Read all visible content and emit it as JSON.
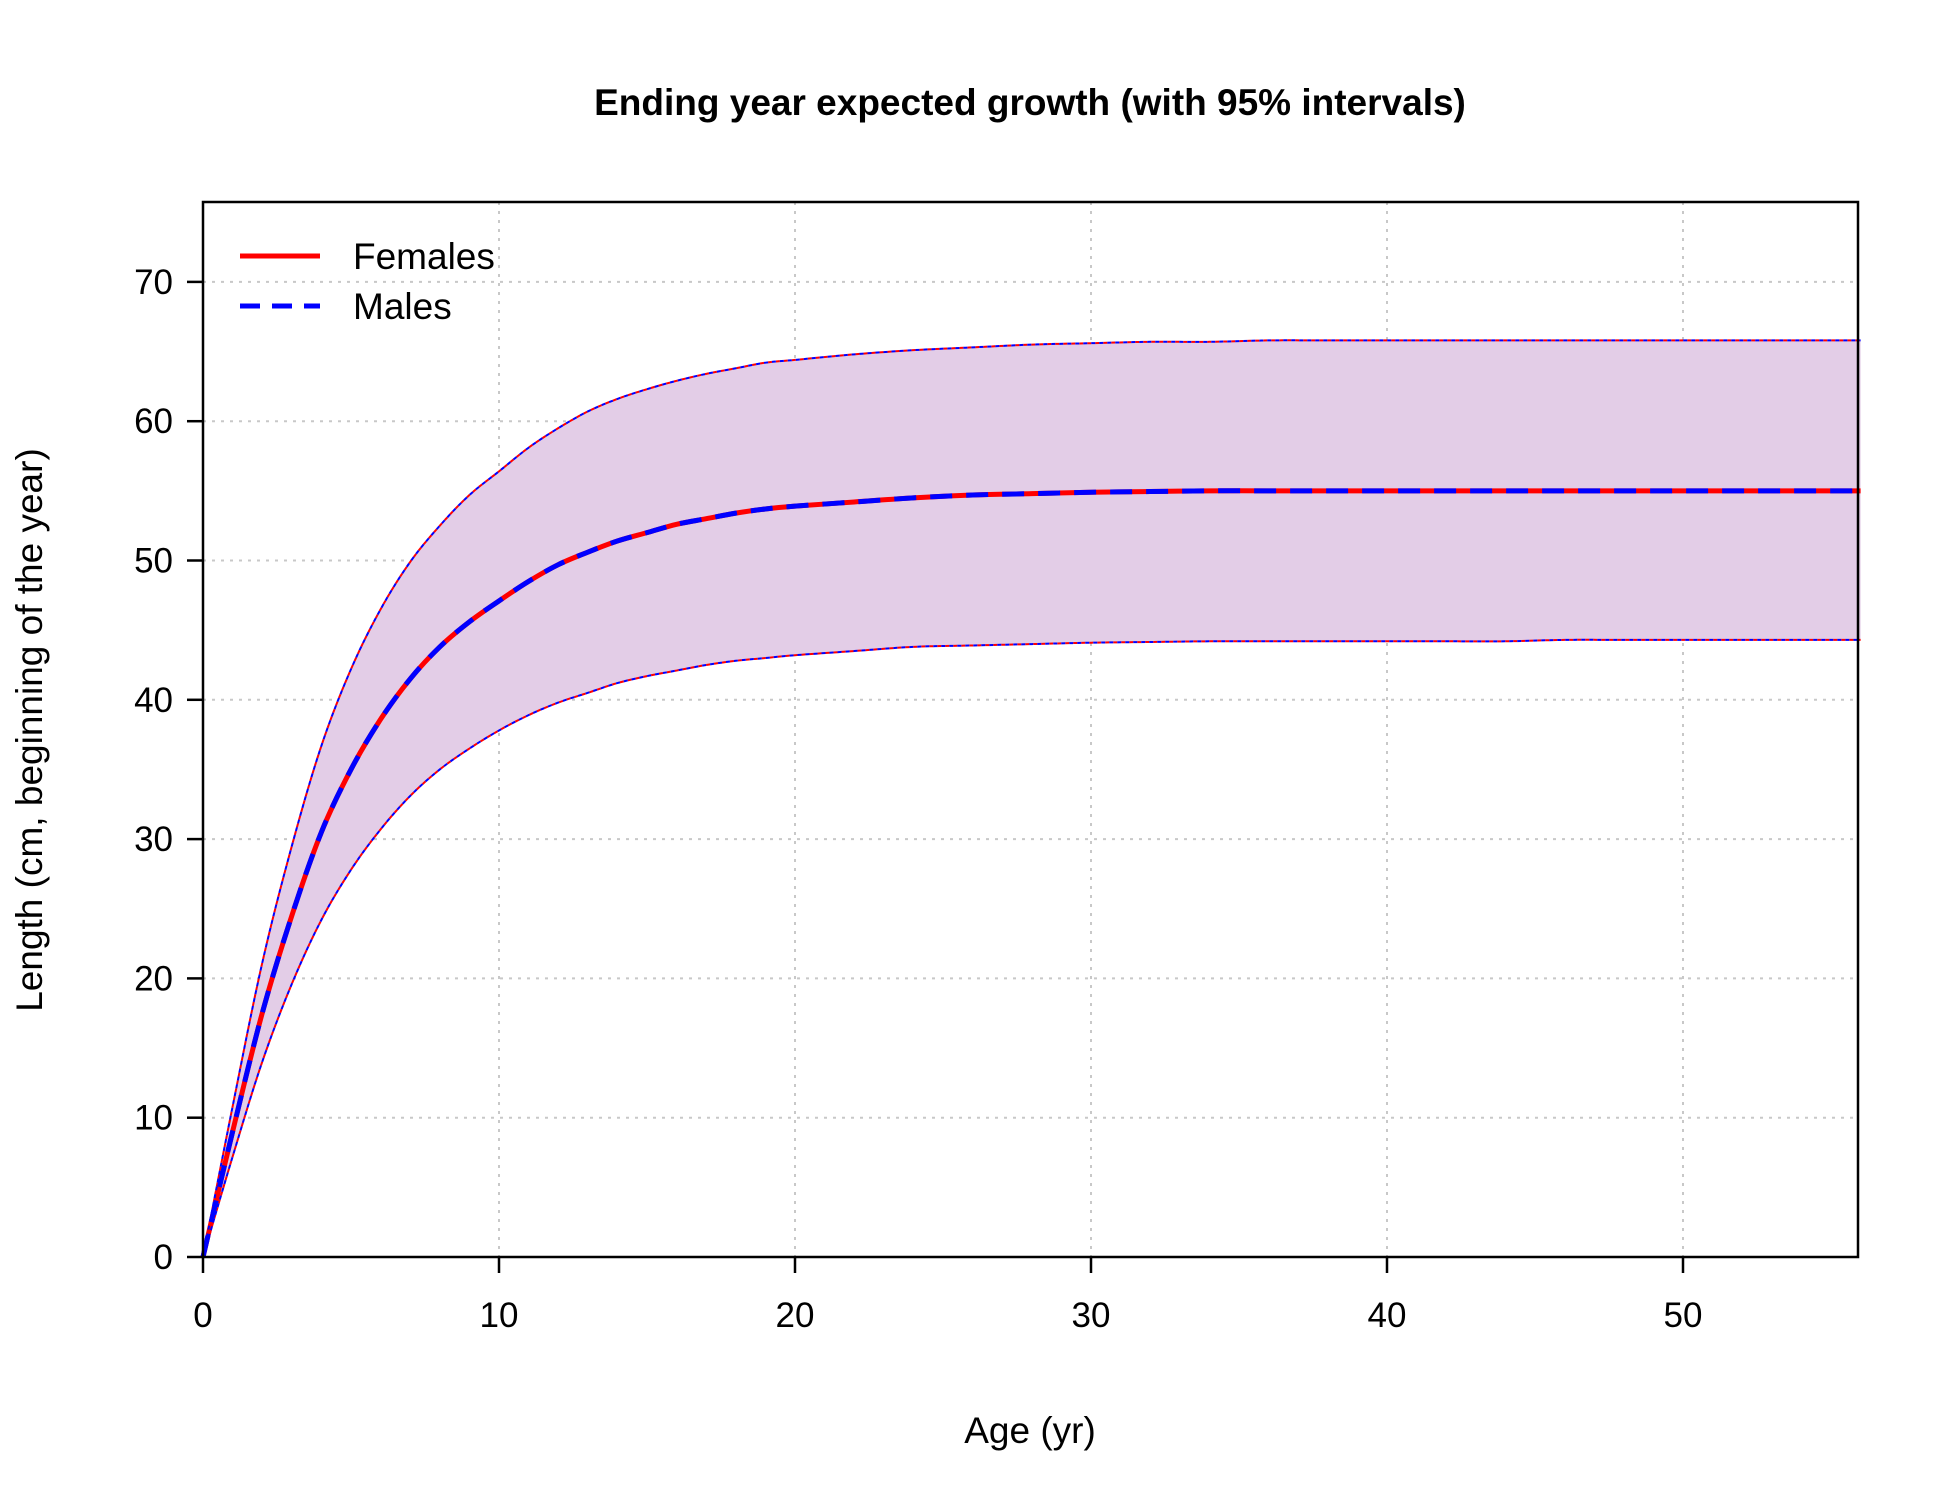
{
  "chart_data": {
    "type": "line",
    "title": "Ending year expected growth (with 95% intervals)",
    "xlabel": "Age (yr)",
    "ylabel": "Length (cm, beginning of the year)",
    "xlim": [
      0,
      56
    ],
    "ylim": [
      0,
      75
    ],
    "x_ticks": [
      0,
      10,
      20,
      30,
      40,
      50
    ],
    "y_ticks": [
      0,
      10,
      20,
      30,
      40,
      50,
      60,
      70
    ],
    "grid": true,
    "legend_position": "top-left",
    "interval_fill_color": "#e3cde7",
    "x": [
      0,
      1,
      2,
      3,
      4,
      5,
      6,
      7,
      8,
      9,
      10,
      11,
      12,
      13,
      14,
      15,
      16,
      17,
      18,
      19,
      20,
      22,
      24,
      26,
      28,
      30,
      32,
      34,
      36,
      38,
      40,
      42,
      44,
      46,
      48,
      50,
      52,
      54,
      56
    ],
    "series": [
      {
        "name": "Females",
        "color": "#ff0000",
        "line_style": "solid",
        "values": [
          0.0,
          9.0,
          17.5,
          24.5,
          30.5,
          35.0,
          38.6,
          41.5,
          43.8,
          45.6,
          47.1,
          48.5,
          49.7,
          50.6,
          51.4,
          52.0,
          52.6,
          53.0,
          53.4,
          53.7,
          53.9,
          54.2,
          54.5,
          54.7,
          54.8,
          54.9,
          54.95,
          55.0,
          55.0,
          55.0,
          55.0,
          55.0,
          55.0,
          55.0,
          55.0,
          55.0,
          55.0,
          55.0,
          55.0
        ],
        "lower": [
          0.0,
          7.2,
          14.0,
          19.6,
          24.2,
          27.8,
          30.7,
          33.1,
          35.0,
          36.5,
          37.8,
          38.9,
          39.8,
          40.5,
          41.2,
          41.7,
          42.1,
          42.5,
          42.8,
          43.0,
          43.2,
          43.5,
          43.8,
          43.9,
          44.0,
          44.1,
          44.15,
          44.2,
          44.2,
          44.2,
          44.2,
          44.2,
          44.2,
          44.3,
          44.3,
          44.3,
          44.3,
          44.3,
          44.3
        ],
        "upper": [
          0.0,
          10.8,
          21.1,
          29.5,
          36.7,
          42.2,
          46.5,
          49.9,
          52.5,
          54.7,
          56.4,
          58.1,
          59.5,
          60.7,
          61.6,
          62.3,
          62.9,
          63.4,
          63.8,
          64.2,
          64.4,
          64.8,
          65.1,
          65.3,
          65.5,
          65.6,
          65.7,
          65.7,
          65.8,
          65.8,
          65.8,
          65.8,
          65.8,
          65.8,
          65.8,
          65.8,
          65.8,
          65.8,
          65.8
        ]
      },
      {
        "name": "Males",
        "color": "#0000ff",
        "line_style": "dashed",
        "values": [
          0.0,
          9.0,
          17.5,
          24.5,
          30.5,
          35.0,
          38.6,
          41.5,
          43.8,
          45.6,
          47.1,
          48.5,
          49.7,
          50.6,
          51.4,
          52.0,
          52.6,
          53.0,
          53.4,
          53.7,
          53.9,
          54.2,
          54.5,
          54.7,
          54.8,
          54.9,
          54.95,
          55.0,
          55.0,
          55.0,
          55.0,
          55.0,
          55.0,
          55.0,
          55.0,
          55.0,
          55.0,
          55.0,
          55.0
        ],
        "lower": [
          0.0,
          7.2,
          14.0,
          19.6,
          24.2,
          27.8,
          30.7,
          33.1,
          35.0,
          36.5,
          37.8,
          38.9,
          39.8,
          40.5,
          41.2,
          41.7,
          42.1,
          42.5,
          42.8,
          43.0,
          43.2,
          43.5,
          43.8,
          43.9,
          44.0,
          44.1,
          44.15,
          44.2,
          44.2,
          44.2,
          44.2,
          44.2,
          44.2,
          44.3,
          44.3,
          44.3,
          44.3,
          44.3,
          44.3
        ],
        "upper": [
          0.0,
          10.8,
          21.1,
          29.5,
          36.7,
          42.2,
          46.5,
          49.9,
          52.5,
          54.7,
          56.4,
          58.1,
          59.5,
          60.7,
          61.6,
          62.3,
          62.9,
          63.4,
          63.8,
          64.2,
          64.4,
          64.8,
          65.1,
          65.3,
          65.5,
          65.6,
          65.7,
          65.7,
          65.8,
          65.8,
          65.8,
          65.8,
          65.8,
          65.8,
          65.8,
          65.8,
          65.8,
          65.8,
          65.8
        ]
      }
    ]
  }
}
